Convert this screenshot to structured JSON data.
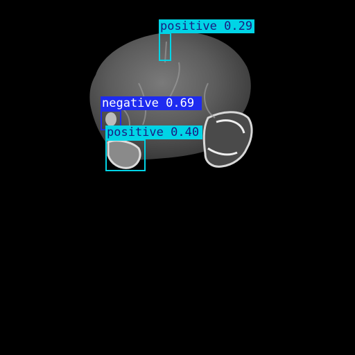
{
  "image": {
    "content": "axial MRI brain scan on black background",
    "background": "#000000"
  },
  "detections": [
    {
      "label": "positive",
      "score": "0.29",
      "text": "positive 0.29",
      "color": "#00D4E6",
      "text_color": "#1a1a80"
    },
    {
      "label": "negative",
      "score": "0.69",
      "text": "negative 0.69",
      "color": "#1E2BF0",
      "text_color": "#ffffff"
    },
    {
      "label": "positive",
      "score": "0.40",
      "text": "positive 0.40",
      "color": "#00D4E6",
      "text_color": "#1a1a80"
    }
  ]
}
